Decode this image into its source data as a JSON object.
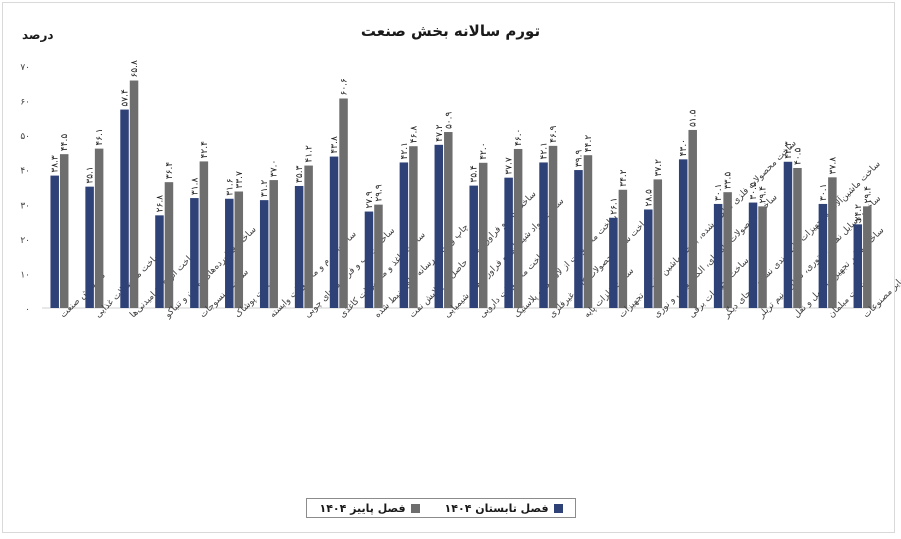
{
  "chart_data": {
    "type": "bar",
    "title": "تورم سالانه بخش صنعت",
    "ylabel": "درصد",
    "ylim": [
      0,
      70
    ],
    "yticks": [
      "۰",
      "۱۰",
      "۲۰",
      "۳۰",
      "۴۰",
      "۵۰",
      "۶۰",
      "۷۰"
    ],
    "legend_position": "bottom",
    "categories": [
      "کل بخش صنعت",
      "ساخت محصولات غذایی",
      "ساخت انواع آشامیدنی‌ها",
      "ساخت فراورده‌های توتون و تنباکو",
      "ساخت منسوجات",
      "ساخت پوشاک",
      "ساخت چرم و محصولات وابسته",
      "ساخت چوب و فراورده‌های چوبی",
      "ساخت کاغذ و محصولات کاغذی",
      "چاپ و تکثیر رسانه های ضبط شده",
      "ساخت کک و فراورده‌های حاصل از پالایش نفت",
      "ساخت مواد شیمیایی و فراورده‌های شیمیایی",
      "ساخت محصولات دارویی",
      "ساخت محصولات از لاستیک و پلاستیک",
      "ساخت سایر محصولات کانی غیرفلزی",
      "ساخت فلزات پایه",
      "ساخت محصولات فلزی ساخته شده، به جز ماشین آلات و تجهیزات",
      "ساخت محصولات رایانه‌ای، الکترونیکی و نوری",
      "ساخت تجهیزات برقی",
      "ساخت ماشین‌آلات و تجهیزات طبقه‌بندی نشده درجای دیگر",
      "ساخت وسایل نقلیه موتوری، تریلر و نیم تریلر",
      "ساخت سایر تجهیزات حمل و نقل",
      "ساخت مبلمان",
      "ساخت سایر مصنوعات"
    ],
    "series": [
      {
        "name": "فصل تابستان ۱۴۰۴",
        "color": "#2e4277",
        "values": [
          38.3,
          35.1,
          57.4,
          26.8,
          31.8,
          31.6,
          31.2,
          35.3,
          43.8,
          27.9,
          42.1,
          47.2,
          35.4,
          37.7,
          42.1,
          39.9,
          26.1,
          28.5,
          43.0,
          30.1,
          30.5,
          42.3,
          30.1,
          24.2
        ],
        "labels": [
          "۳۸.۳",
          "۳۵.۱",
          "۵۷.۴",
          "۲۶.۸",
          "۳۱.۸",
          "۳۱.۶",
          "۳۱.۲",
          "۳۵.۳",
          "۴۳.۸",
          "۲۷.۹",
          "۴۲.۱",
          "۴۷.۲",
          "۳۵.۴",
          "۳۷.۷",
          "۴۲.۱",
          "۳۹.۹",
          "۲۶.۱",
          "۲۸.۵",
          "۴۳.۰",
          "۳۰.۱",
          "۳۰.۵",
          "۴۲.۳",
          "۳۰.۱",
          "۲۴.۲"
        ]
      },
      {
        "name": "فصل پاییز ۱۴۰۴",
        "color": "#6e6e6e",
        "values": [
          44.5,
          46.1,
          65.8,
          36.4,
          42.4,
          33.7,
          37.0,
          41.2,
          60.6,
          29.9,
          46.8,
          50.9,
          42.0,
          46.0,
          46.9,
          44.2,
          34.2,
          37.2,
          51.5,
          33.5,
          29.4,
          40.5,
          37.8,
          29.4
        ],
        "labels": [
          "۴۴.۵",
          "۴۶.۱",
          "۶۵.۸",
          "۳۶.۴",
          "۴۲.۴",
          "۳۳.۷",
          "۳۷.۰",
          "۴۱.۲",
          "۶۰.۶",
          "۲۹.۹",
          "۴۶.۸",
          "۵۰.۹",
          "۴۲.۰",
          "۴۶.۰",
          "۴۶.۹",
          "۴۴.۲",
          "۳۴.۲",
          "۳۷.۲",
          "۵۱.۵",
          "۳۳.۵",
          "۲۹.۴",
          "۴۰.۵",
          "۳۷.۸",
          "۲۹.۴"
        ]
      }
    ]
  }
}
